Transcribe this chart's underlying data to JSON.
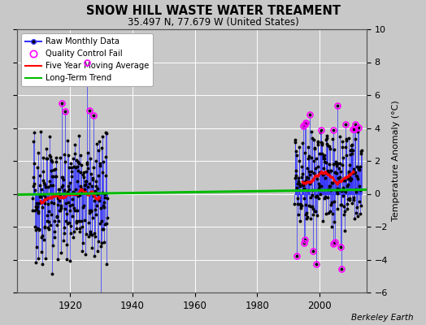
{
  "title": "SNOW HILL WASTE WATER TREAMENT",
  "subtitle": "35.497 N, 77.679 W (United States)",
  "ylabel": "Temperature Anomaly (°C)",
  "credit": "Berkeley Earth",
  "ylim": [
    -6,
    10
  ],
  "yticks": [
    -6,
    -4,
    -2,
    0,
    2,
    4,
    6,
    8,
    10
  ],
  "xlim": [
    1903,
    2015
  ],
  "xticks": [
    1920,
    1940,
    1960,
    1980,
    2000
  ],
  "fig_bg": "#c8c8c8",
  "plot_bg": "#c8c8c8",
  "grid_color": "#ffffff",
  "raw_line_color": "#3333ff",
  "raw_dot_color": "#000000",
  "ma_color": "#ff0000",
  "trend_color": "#00bb00",
  "qc_color": "#ff00ff",
  "early_seed": 42,
  "late_seed": 99,
  "early_start": 1908.0,
  "early_end": 1932.0,
  "late_start": 1992.0,
  "late_end": 2013.5,
  "early_mean": -0.15,
  "early_noise": 1.8,
  "early_seasonal": 1.2,
  "late_mean": 0.5,
  "late_noise": 1.6,
  "late_seasonal": 1.0,
  "late_trend": 0.04,
  "trend_x": [
    1903,
    2015
  ],
  "trend_y": [
    -0.05,
    0.25
  ],
  "ma_window": 60,
  "qc_threshold_early": 3.8,
  "qc_threshold_late_high": 3.8,
  "qc_threshold_late_low": -2.5
}
